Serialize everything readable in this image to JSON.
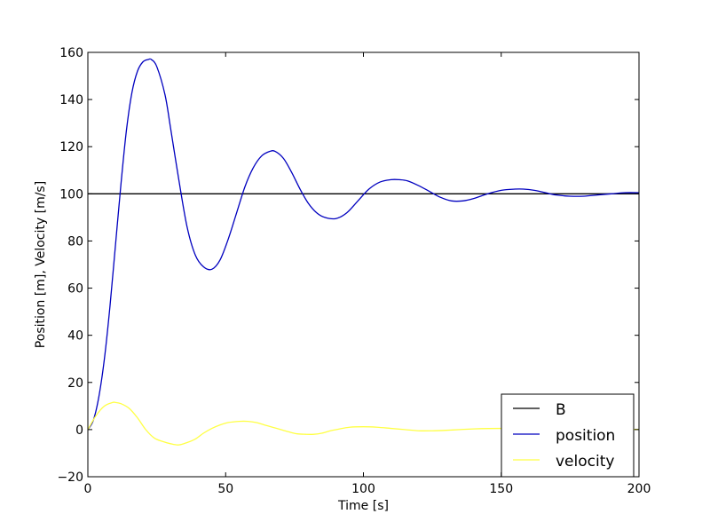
{
  "chart_data": {
    "type": "line",
    "xlabel": "Time [s]",
    "ylabel": "Position [m], Velocity [m/s]",
    "xlim": [
      0,
      200
    ],
    "ylim": [
      -20,
      160
    ],
    "xticks": [
      0,
      50,
      100,
      150,
      200
    ],
    "yticks": [
      -20,
      0,
      20,
      40,
      60,
      80,
      100,
      120,
      140,
      160
    ],
    "xtick_labels": [
      "0",
      "50",
      "100",
      "150",
      "200"
    ],
    "ytick_labels": [
      "−20",
      "0",
      "20",
      "40",
      "60",
      "80",
      "100",
      "120",
      "140",
      "160"
    ],
    "grid": false,
    "legend_position": "lower-right",
    "series": [
      {
        "name": "B",
        "color": "#000000",
        "x": [
          0,
          200
        ],
        "y": [
          100,
          100
        ]
      },
      {
        "name": "position",
        "color": "#0000bf",
        "x": [
          0,
          2,
          4,
          6,
          8,
          10,
          12,
          14,
          16,
          18,
          20,
          22,
          23,
          25,
          28,
          30,
          33,
          36,
          39,
          42,
          45,
          48,
          51,
          54,
          57,
          60,
          63,
          66,
          68,
          71,
          74,
          77,
          80,
          83,
          86,
          90,
          94,
          98,
          102,
          106,
          110,
          113,
          116,
          120,
          124,
          128,
          132,
          136,
          140,
          145,
          150,
          155,
          158,
          162,
          166,
          170,
          175,
          180,
          185,
          190,
          195,
          200
        ],
        "y": [
          0,
          4,
          14,
          30,
          52,
          78,
          104,
          127,
          143,
          152,
          156,
          157,
          157,
          154,
          142,
          128,
          106,
          86,
          74,
          69,
          68,
          72,
          81,
          92,
          103,
          111,
          116,
          118,
          118,
          115,
          109,
          102,
          96,
          92,
          90,
          89.5,
          92,
          97,
          102,
          105,
          106,
          106,
          105.5,
          103.5,
          101,
          98.5,
          97,
          97,
          98,
          100,
          101.5,
          102,
          102,
          101.5,
          100.5,
          99.5,
          99,
          99,
          99.5,
          100,
          100.5,
          100.5
        ]
      },
      {
        "name": "velocity",
        "color": "#ffff44",
        "x": [
          0,
          3,
          6,
          9,
          10,
          12,
          15,
          18,
          21,
          24,
          27,
          30,
          33,
          36,
          39,
          42,
          45,
          48,
          51,
          55,
          58,
          61,
          64,
          67,
          70,
          73,
          76,
          79,
          82,
          85,
          88,
          91,
          95,
          100,
          105,
          110,
          115,
          120,
          125,
          130,
          135,
          140,
          150,
          160,
          170,
          180,
          190,
          200
        ],
        "y": [
          0,
          6,
          10,
          11.5,
          11.5,
          11,
          9,
          5,
          0,
          -3.5,
          -5,
          -6,
          -6.5,
          -5.5,
          -4,
          -1.5,
          0.5,
          2,
          3,
          3.5,
          3.5,
          3,
          2,
          1,
          0,
          -1,
          -1.8,
          -2,
          -2,
          -1.5,
          -0.5,
          0.2,
          1,
          1.2,
          1,
          0.5,
          0,
          -0.5,
          -0.5,
          -0.3,
          0,
          0.3,
          0.5,
          0.3,
          0,
          -0.2,
          0,
          0.1
        ]
      }
    ]
  }
}
